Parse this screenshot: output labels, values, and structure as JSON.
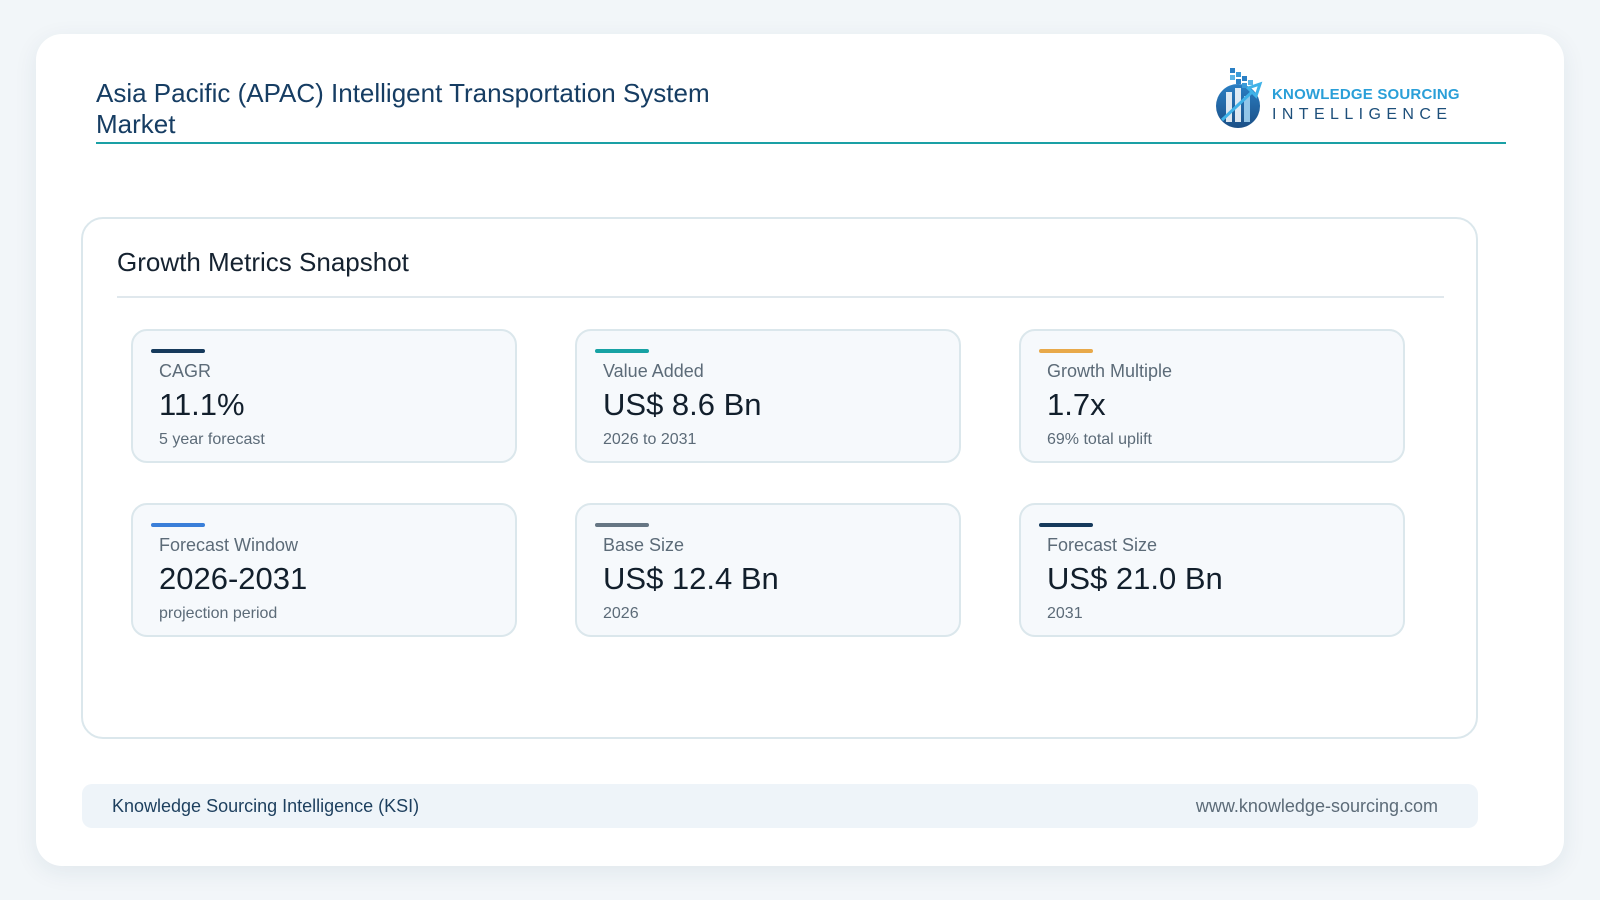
{
  "header": {
    "title": "Asia Pacific (APAC) Intelligent Transportation System Market"
  },
  "logo": {
    "line1": "KNOWLEDGE SOURCING",
    "line2": "INTELLIGENCE",
    "icon": "ksi-logo-icon"
  },
  "panel": {
    "title": "Growth Metrics Snapshot"
  },
  "metrics": [
    {
      "label": "CAGR",
      "value": "11.1%",
      "sub": "5 year forecast",
      "accent": "#163a5c"
    },
    {
      "label": "Value Added",
      "value": "US$ 8.6 Bn",
      "sub": "2026 to 2031",
      "accent": "#17a2a4"
    },
    {
      "label": "Growth Multiple",
      "value": "1.7x",
      "sub": "69% total uplift",
      "accent": "#e8a94a"
    },
    {
      "label": "Forecast Window",
      "value": "2026-2031",
      "sub": "projection period",
      "accent": "#3a7fd9"
    },
    {
      "label": "Base Size",
      "value": "US$ 12.4 Bn",
      "sub": "2026",
      "accent": "#667684"
    },
    {
      "label": "Forecast Size",
      "value": "US$ 21.0 Bn",
      "sub": "2031",
      "accent": "#163a5c"
    }
  ],
  "footer": {
    "left": "Knowledge Sourcing Intelligence (KSI)",
    "right": "www.knowledge-sourcing.com"
  }
}
